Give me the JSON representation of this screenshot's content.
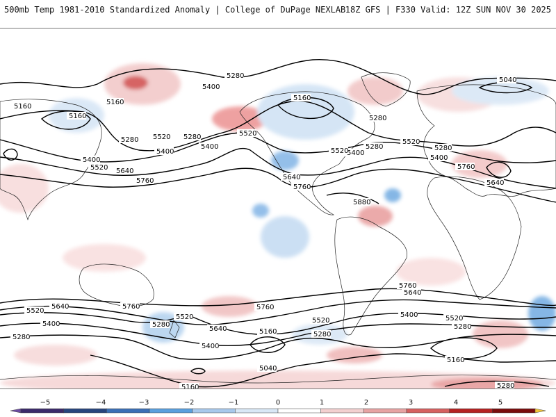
{
  "header": {
    "title_left": "500mb Temp 1981-2010 Standardized Anomaly | College of DuPage NEXLAB",
    "title_right": "18Z GFS | F330 Valid: 12Z SUN NOV 30 2025"
  },
  "colors": {
    "land_outline": "#222222",
    "contour": "#000000",
    "warm_light": "#f6d6d6",
    "warm_mid": "#e8a2a2",
    "warm_strong": "#d45c5c",
    "warm_max": "#b71c1c",
    "cold_light": "#d6e6f5",
    "cold_mid": "#9fc4ea",
    "cold_strong": "#5aa0de",
    "cold_max": "#2f6bb7"
  },
  "contour_labels": [
    "5280",
    "5400",
    "5160",
    "5160",
    "5280",
    "5520",
    "5280",
    "5400",
    "5520",
    "5400",
    "5520",
    "5400",
    "5640",
    "5760",
    "5040",
    "5160",
    "5520",
    "5400",
    "5280",
    "5520",
    "5400",
    "5280",
    "5640",
    "5760",
    "5640",
    "5760",
    "5880",
    "5760",
    "5640",
    "5520",
    "5640",
    "5760",
    "5400",
    "5280",
    "5520",
    "5400",
    "5280",
    "5280",
    "5640",
    "5160",
    "5400",
    "5520",
    "5280",
    "5040",
    "5160",
    "5760",
    "5400",
    "5520",
    "5280",
    "5160",
    "5160",
    "5280"
  ],
  "colorbar": {
    "labels": [
      "−5",
      "−4",
      "−3",
      "−2",
      "−1",
      "0",
      "1",
      "2",
      "3",
      "4",
      "5"
    ],
    "colors": [
      "#3b2a6b",
      "#27457e",
      "#3b6fb6",
      "#5aa0de",
      "#a8c9ec",
      "#d9e8f6",
      "#ffffff",
      "#f3d0d0",
      "#e7a3a3",
      "#d66060",
      "#b52121",
      "#7a0c0c"
    ],
    "end_low_color": "#6a4aa1",
    "end_high_color": "#f2c438"
  }
}
